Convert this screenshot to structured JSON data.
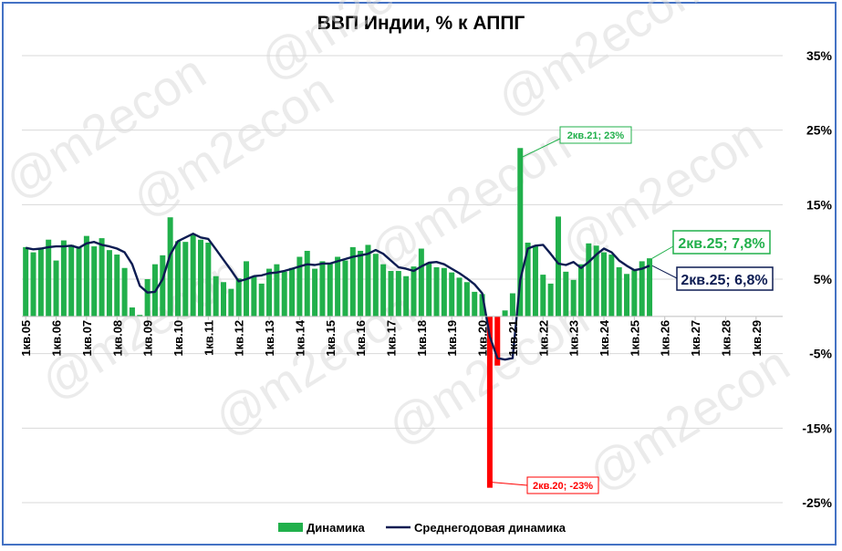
{
  "chart_data": {
    "type": "bar",
    "title": "ВВП Индии, % к АППГ",
    "watermark": "@m2econ",
    "ylim": [
      -25,
      35
    ],
    "yticks": [
      35,
      25,
      15,
      5,
      -5,
      -15,
      -25
    ],
    "ytick_labels": [
      "35%",
      "25%",
      "15%",
      "5%",
      "-5%",
      "-15%",
      "-25%"
    ],
    "xtick_labels": [
      "1кв.05",
      "1кв.06",
      "1кв.07",
      "1кв.08",
      "1кв.09",
      "1кв.10",
      "1кв.11",
      "1кв.12",
      "1кв.13",
      "1кв.14",
      "1кв.15",
      "1кв.16",
      "1кв.17",
      "1кв.18",
      "1кв.19",
      "1кв.20",
      "1кв.21",
      "1кв.22",
      "1кв.23",
      "1кв.24",
      "1кв.25",
      "1кв.26",
      "1кв.27",
      "1кв.28",
      "1кв.29"
    ],
    "quarters_total": 100,
    "colors": {
      "bars": "#21b04b",
      "negative": "#ff0000",
      "line": "#0d1c52",
      "frame": "#4472c4"
    },
    "series": [
      {
        "name": "Динамика",
        "type": "bar",
        "values": [
          9.3,
          8.6,
          9.2,
          10.3,
          7.5,
          10.2,
          9.6,
          9.3,
          10.8,
          9.4,
          10.5,
          8.9,
          8.3,
          6.5,
          1.2,
          0.2,
          5.0,
          7.0,
          8.2,
          13.3,
          10.1,
          10.0,
          11.0,
          10.3,
          9.9,
          5.4,
          4.6,
          3.7,
          5.1,
          7.4,
          5.3,
          4.4,
          6.4,
          7.0,
          6.0,
          6.5,
          8.0,
          8.8,
          6.4,
          7.4,
          7.2,
          8.0,
          7.5,
          9.3,
          8.8,
          9.6,
          8.4,
          7.0,
          6.1,
          6.1,
          5.4,
          6.7,
          9.1,
          7.2,
          6.6,
          6.5,
          5.9,
          5.2,
          4.6,
          3.3,
          3.0,
          -23.0,
          -6.6,
          0.8,
          3.1,
          22.6,
          9.9,
          9.5,
          5.6,
          4.4,
          13.4,
          6.0,
          4.9,
          7.0,
          9.8,
          9.5,
          8.6,
          8.3,
          6.6,
          5.7,
          6.2,
          7.4,
          7.8
        ],
        "annotations": [
          {
            "label": "2кв.21; 23%",
            "value": 22.6
          },
          {
            "label": "2кв.20; -23%",
            "value": -23.0
          },
          {
            "label": "2кв.25; 7,8%",
            "value": 7.8
          }
        ]
      },
      {
        "name": "Среднегодовая динамика",
        "type": "line",
        "values": [
          9.2,
          9.0,
          9.1,
          9.3,
          9.4,
          9.4,
          9.5,
          9.2,
          9.8,
          10.0,
          9.6,
          9.4,
          9.1,
          8.6,
          7.0,
          4.1,
          3.2,
          3.3,
          5.0,
          8.3,
          10.1,
          10.6,
          11.1,
          10.6,
          10.4,
          9.0,
          7.6,
          6.2,
          4.7,
          5.0,
          5.4,
          5.5,
          5.8,
          5.9,
          6.1,
          6.4,
          6.7,
          7.0,
          6.9,
          7.1,
          7.1,
          7.4,
          7.7,
          8.0,
          8.2,
          8.4,
          8.9,
          8.4,
          7.5,
          6.6,
          6.4,
          6.1,
          6.7,
          7.2,
          7.3,
          7.0,
          6.4,
          5.8,
          5.1,
          4.3,
          3.1,
          -2.7,
          -5.6,
          -5.8,
          -5.6,
          4.9,
          9.1,
          9.5,
          9.6,
          8.4,
          7.1,
          6.9,
          7.3,
          6.5,
          7.3,
          8.3,
          9.1,
          8.6,
          7.5,
          6.8,
          6.2,
          6.4,
          6.8
        ],
        "annotations": [
          {
            "label": "2кв.25; 6,8%",
            "value": 6.8
          }
        ]
      }
    ],
    "legend": [
      "Динамика",
      "Среднегодовая динамика"
    ],
    "legend_position": "bottom"
  }
}
